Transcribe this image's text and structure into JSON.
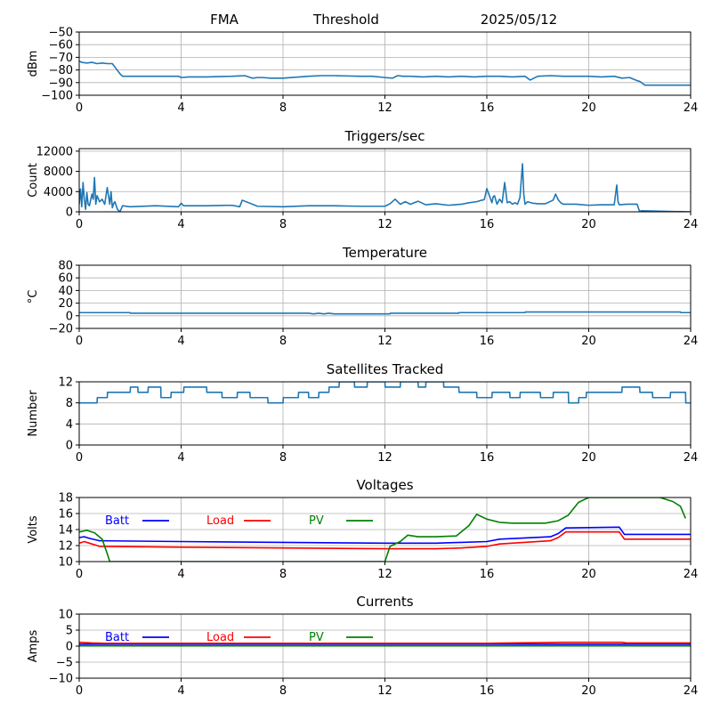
{
  "header": {
    "station": "FMA",
    "mode": "Threshold",
    "date": "2025/05/12"
  },
  "chart_data": [
    {
      "type": "line",
      "title": "",
      "xlabel": "",
      "ylabel": "dBm",
      "xlim": [
        0,
        24
      ],
      "ylim": [
        -100,
        -50
      ],
      "xticks": [
        0,
        4,
        8,
        12,
        16,
        20,
        24
      ],
      "yticks": [
        -100,
        -90,
        -80,
        -70,
        -60,
        -50
      ],
      "ytick_labels": [
        "−100",
        "−90",
        "−80",
        "−70",
        "−60",
        "−50"
      ],
      "grid": true,
      "series": [
        {
          "color": "#1f77b4",
          "x": [
            0,
            0.1,
            0.3,
            0.5,
            0.7,
            0.9,
            1.1,
            1.3,
            1.45,
            1.6,
            1.7,
            2.0,
            3.0,
            3.9,
            4.0,
            4.3,
            5.0,
            6.0,
            6.5,
            6.8,
            7.0,
            7.2,
            7.5,
            8.0,
            9.0,
            9.5,
            10.0,
            11.0,
            11.5,
            12.0,
            12.3,
            12.5,
            12.7,
            13.0,
            13.5,
            14.0,
            14.5,
            15.0,
            15.5,
            16.0,
            16.5,
            17.0,
            17.5,
            17.7,
            18.0,
            18.5,
            19.0,
            19.5,
            20.0,
            20.5,
            21.0,
            21.3,
            21.6,
            21.9,
            22.0,
            22.2,
            23.0,
            24.0
          ],
          "y": [
            -73,
            -74,
            -74.5,
            -74,
            -75,
            -74.5,
            -75,
            -75,
            -79,
            -83,
            -85,
            -85,
            -85,
            -85,
            -86,
            -85.5,
            -85.5,
            -85,
            -84.5,
            -86.5,
            -86,
            -86,
            -86.5,
            -86.5,
            -85,
            -84.5,
            -84.5,
            -85,
            -85,
            -86,
            -86.5,
            -84.5,
            -85,
            -85,
            -85.5,
            -85,
            -85.5,
            -85,
            -85.5,
            -85,
            -85,
            -85.5,
            -85,
            -88,
            -85,
            -84.5,
            -85,
            -85,
            -85,
            -85.5,
            -85,
            -86.5,
            -86,
            -88.5,
            -89,
            -92,
            -92,
            -92
          ]
        }
      ]
    },
    {
      "type": "line",
      "title": "Triggers/sec",
      "xlabel": "",
      "ylabel": "Count",
      "xlim": [
        0,
        24
      ],
      "ylim": [
        0,
        12500
      ],
      "xticks": [
        0,
        4,
        8,
        12,
        16,
        20,
        24
      ],
      "yticks": [
        0,
        4000,
        8000,
        12000
      ],
      "ytick_labels": [
        "0",
        "4000",
        "8000",
        "12000"
      ],
      "grid": true,
      "series": [
        {
          "color": "#1f77b4",
          "x": [
            0,
            0.05,
            0.1,
            0.15,
            0.2,
            0.25,
            0.3,
            0.35,
            0.4,
            0.5,
            0.55,
            0.6,
            0.65,
            0.7,
            0.8,
            0.9,
            1.0,
            1.1,
            1.2,
            1.25,
            1.3,
            1.35,
            1.4,
            1.5,
            1.6,
            1.7,
            2.0,
            3.0,
            3.9,
            4.0,
            4.1,
            5.0,
            6.0,
            6.3,
            6.4,
            7.0,
            8.0,
            9.0,
            10.0,
            11.0,
            12.0,
            12.2,
            12.4,
            12.6,
            12.8,
            13.0,
            13.3,
            13.6,
            14.0,
            14.5,
            15.0,
            15.3,
            15.6,
            15.8,
            15.9,
            16.0,
            16.1,
            16.2,
            16.25,
            16.3,
            16.4,
            16.5,
            16.6,
            16.7,
            16.8,
            16.9,
            17.0,
            17.1,
            17.2,
            17.3,
            17.4,
            17.45,
            17.5,
            17.6,
            17.8,
            18.0,
            18.3,
            18.6,
            18.7,
            18.8,
            18.9,
            19.0,
            19.5,
            20.0,
            20.5,
            21.0,
            21.1,
            21.15,
            21.2,
            21.5,
            21.9,
            22.0,
            22.05,
            23.0,
            24.0
          ],
          "y": [
            1500,
            4500,
            1000,
            5800,
            2500,
            500,
            3800,
            1500,
            1200,
            3500,
            2500,
            6800,
            1500,
            3200,
            2000,
            2500,
            1500,
            4800,
            1500,
            4000,
            800,
            1600,
            2000,
            500,
            0,
            1200,
            1000,
            1200,
            1000,
            1700,
            1200,
            1200,
            1300,
            1000,
            2300,
            1100,
            1000,
            1200,
            1200,
            1100,
            1100,
            1600,
            2500,
            1500,
            2000,
            1500,
            2100,
            1400,
            1600,
            1300,
            1500,
            1800,
            2000,
            2300,
            2400,
            4600,
            3200,
            1800,
            3000,
            3200,
            1500,
            2500,
            1800,
            5800,
            1800,
            2000,
            1500,
            1800,
            1500,
            2800,
            9500,
            3500,
            1500,
            2000,
            1700,
            1600,
            1600,
            2300,
            3500,
            2400,
            1800,
            1500,
            1500,
            1300,
            1400,
            1400,
            5300,
            2000,
            1400,
            1500,
            1500,
            0,
            200,
            100,
            0
          ]
        }
      ]
    },
    {
      "type": "line",
      "title": "Temperature",
      "xlabel": "",
      "ylabel": "°C",
      "xlim": [
        0,
        24
      ],
      "ylim": [
        -20,
        80
      ],
      "xticks": [
        0,
        4,
        8,
        12,
        16,
        20,
        24
      ],
      "yticks": [
        -20,
        0,
        20,
        40,
        60,
        80
      ],
      "ytick_labels": [
        "−20",
        "0",
        "20",
        "40",
        "60",
        "80"
      ],
      "grid": true,
      "series": [
        {
          "color": "#1f77b4",
          "x": [
            0,
            2.0,
            2.01,
            9.0,
            9.2,
            9.4,
            9.6,
            9.8,
            10.0,
            10.2,
            12.2,
            12.21,
            14.9,
            14.91,
            17.5,
            17.51,
            23.6,
            23.61,
            24
          ],
          "y": [
            5,
            5,
            4,
            4,
            3,
            4,
            3,
            4,
            3,
            3,
            3,
            4,
            4,
            5,
            5,
            6,
            6,
            5,
            5
          ]
        }
      ]
    },
    {
      "type": "line",
      "title": "Satellites Tracked",
      "xlabel": "",
      "ylabel": "Number",
      "xlim": [
        0,
        24
      ],
      "ylim": [
        0,
        12
      ],
      "xticks": [
        0,
        4,
        8,
        12,
        16,
        20,
        24
      ],
      "yticks": [
        0,
        4,
        8,
        12
      ],
      "ytick_labels": [
        "0",
        "4",
        "8",
        "12"
      ],
      "grid": true,
      "series": [
        {
          "color": "#1f77b4",
          "x": [
            0,
            0.7,
            0.71,
            1.1,
            1.11,
            2.0,
            2.01,
            2.3,
            2.31,
            2.7,
            2.71,
            3.2,
            3.21,
            3.6,
            3.61,
            4.1,
            4.11,
            5.0,
            5.01,
            5.6,
            5.61,
            6.2,
            6.21,
            6.7,
            6.71,
            7.4,
            7.41,
            8.0,
            8.01,
            8.6,
            8.61,
            9.0,
            9.01,
            9.4,
            9.41,
            9.8,
            9.81,
            10.2,
            10.21,
            10.8,
            10.81,
            11.3,
            11.31,
            12.0,
            12.01,
            12.6,
            12.61,
            13.3,
            13.31,
            13.6,
            13.61,
            14.3,
            14.31,
            14.9,
            14.91,
            15.6,
            15.61,
            16.2,
            16.21,
            16.9,
            16.91,
            17.3,
            17.31,
            18.1,
            18.11,
            18.6,
            18.61,
            19.2,
            19.21,
            19.6,
            19.61,
            19.9,
            19.91,
            21.3,
            21.31,
            22.0,
            22.01,
            22.5,
            22.51,
            23.2,
            23.21,
            23.8,
            23.81,
            24
          ],
          "y": [
            8,
            8,
            9,
            9,
            10,
            10,
            11,
            11,
            10,
            10,
            11,
            11,
            9,
            9,
            10,
            10,
            11,
            11,
            10,
            10,
            9,
            9,
            10,
            10,
            9,
            9,
            8,
            8,
            9,
            9,
            10,
            10,
            9,
            9,
            10,
            10,
            11,
            11,
            12,
            12,
            11,
            11,
            12,
            12,
            11,
            11,
            12,
            12,
            11,
            11,
            12,
            12,
            11,
            11,
            10,
            10,
            9,
            9,
            10,
            10,
            9,
            9,
            10,
            10,
            9,
            9,
            10,
            10,
            8,
            8,
            9,
            9,
            10,
            10,
            11,
            11,
            10,
            10,
            9,
            9,
            10,
            10,
            8,
            8
          ]
        }
      ]
    },
    {
      "type": "line",
      "title": "Voltages",
      "xlabel": "",
      "ylabel": "Volts",
      "xlim": [
        0,
        24
      ],
      "ylim": [
        10,
        18
      ],
      "xticks": [
        0,
        4,
        8,
        12,
        16,
        20,
        24
      ],
      "yticks": [
        10,
        12,
        14,
        16,
        18
      ],
      "ytick_labels": [
        "10",
        "12",
        "14",
        "16",
        "18"
      ],
      "grid": true,
      "legend": "inline-top",
      "series": [
        {
          "name": "Batt",
          "color": "#0000ff",
          "x": [
            0,
            0.2,
            0.4,
            0.8,
            4,
            8,
            12,
            14,
            15,
            16,
            16.5,
            18.5,
            18.8,
            19.1,
            21.2,
            21.4,
            24
          ],
          "y": [
            13.0,
            13.1,
            12.9,
            12.6,
            12.5,
            12.4,
            12.3,
            12.3,
            12.4,
            12.5,
            12.8,
            13.1,
            13.5,
            14.2,
            14.3,
            13.4,
            13.4
          ]
        },
        {
          "name": "Load",
          "color": "#ff0000",
          "x": [
            0,
            0.2,
            0.4,
            0.8,
            4,
            8,
            12,
            14,
            15,
            16,
            16.5,
            18.5,
            18.8,
            19.1,
            21.2,
            21.4,
            24
          ],
          "y": [
            12.3,
            12.5,
            12.3,
            11.9,
            11.8,
            11.7,
            11.6,
            11.6,
            11.7,
            11.9,
            12.2,
            12.6,
            13.0,
            13.7,
            13.7,
            12.8,
            12.8
          ]
        },
        {
          "name": "PV",
          "color": "#008000",
          "x": [
            0,
            0.3,
            0.6,
            0.9,
            1.1,
            1.2,
            12.0,
            12.2,
            12.6,
            12.9,
            13.3,
            14.0,
            14.8,
            15.3,
            15.6,
            16.0,
            16.5,
            17.0,
            17.5,
            18.3,
            18.8,
            19.2,
            19.6,
            20.0,
            22.8,
            23.3,
            23.6,
            23.8
          ],
          "y": [
            13.7,
            13.9,
            13.6,
            12.8,
            11.0,
            10.0,
            10.0,
            11.9,
            12.5,
            13.3,
            13.1,
            13.1,
            13.2,
            14.5,
            15.9,
            15.3,
            14.9,
            14.8,
            14.8,
            14.8,
            15.1,
            15.8,
            17.4,
            18.0,
            18.0,
            17.5,
            16.9,
            15.4
          ]
        }
      ]
    },
    {
      "type": "line",
      "title": "Currents",
      "xlabel": "",
      "ylabel": "Amps",
      "xlim": [
        0,
        24
      ],
      "ylim": [
        -10,
        10
      ],
      "xticks": [
        0,
        4,
        8,
        12,
        16,
        20,
        24
      ],
      "yticks": [
        -10,
        -5,
        0,
        5,
        10
      ],
      "ytick_labels": [
        "−10",
        "−5",
        "0",
        "5",
        "10"
      ],
      "grid": true,
      "legend": "inline-top",
      "series": [
        {
          "name": "Batt",
          "color": "#0000ff",
          "x": [
            0,
            24
          ],
          "y": [
            0.6,
            0.6
          ]
        },
        {
          "name": "Load",
          "color": "#ff0000",
          "x": [
            0,
            0.5,
            1,
            16,
            19,
            21.3,
            21.5,
            24
          ],
          "y": [
            1.2,
            1.0,
            0.9,
            0.9,
            1.2,
            1.2,
            1.0,
            1.0
          ]
        },
        {
          "name": "PV",
          "color": "#008000",
          "x": [
            0,
            24
          ],
          "y": [
            0.1,
            0.1
          ]
        }
      ]
    }
  ]
}
